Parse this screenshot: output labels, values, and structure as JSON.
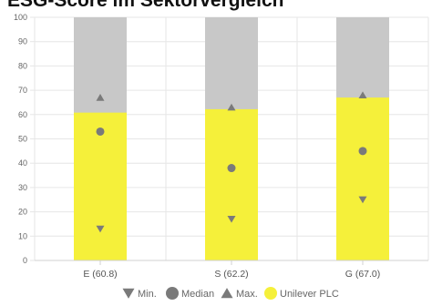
{
  "chart_data": {
    "type": "bar",
    "title": "ESG-Score im Sektorvergleich",
    "categories": [
      "E (60.8)",
      "S (62.2)",
      "G (67.0)"
    ],
    "ylim": [
      0,
      100
    ],
    "yticks": [
      0,
      10,
      20,
      30,
      40,
      50,
      60,
      70,
      80,
      90,
      100
    ],
    "grid": true,
    "legend_position": "bottom",
    "colors": {
      "company": "#f5f03a",
      "range_background": "#c8c8c8",
      "markers": "#7a7a7a",
      "grid": "#e6e6e6"
    },
    "series": [
      {
        "name": "Unilever PLC",
        "kind": "bar",
        "values": [
          60.8,
          62.2,
          67.0
        ]
      },
      {
        "name": "Min.",
        "kind": "marker",
        "marker": "triangle-down",
        "values": [
          13,
          17,
          25
        ]
      },
      {
        "name": "Median",
        "kind": "marker",
        "marker": "circle",
        "values": [
          53,
          38,
          45
        ]
      },
      {
        "name": "Max.",
        "kind": "marker",
        "marker": "triangle-up",
        "values": [
          67,
          63,
          68
        ]
      }
    ],
    "legend": [
      {
        "label": "Min.",
        "marker": "triangle-down"
      },
      {
        "label": "Median",
        "marker": "circle"
      },
      {
        "label": "Max.",
        "marker": "triangle-up"
      },
      {
        "label": "Unilever PLC",
        "marker": "yellow-circle"
      }
    ]
  }
}
